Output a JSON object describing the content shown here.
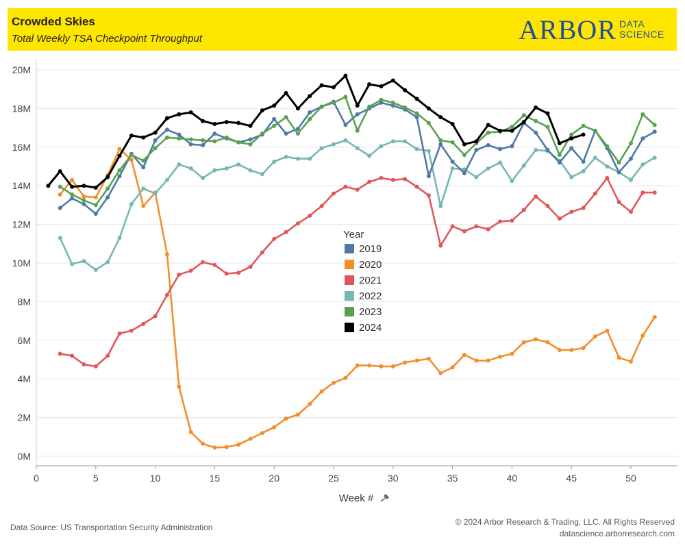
{
  "header": {
    "title": "Crowded Skies",
    "subtitle": "Total Weekly TSA Checkpoint Throughput",
    "logo_word": "ARBOR",
    "logo_line1": "DATA",
    "logo_line2": "SCIENCE"
  },
  "footer": {
    "source": "Data Source: US Transportation Security Administration",
    "copyright": "© 2024 Arbor Research & Trading, LLC. All Rights Reserved",
    "website": "datascience.arborresearch.com"
  },
  "chart_data": {
    "type": "line",
    "title": "Crowded Skies",
    "subtitle": "Total Weekly TSA Checkpoint Throughput",
    "xlabel": "Week #",
    "ylabel": "",
    "xlim": [
      0,
      53
    ],
    "ylim": [
      0,
      20000000
    ],
    "xticks": [
      0,
      5,
      10,
      15,
      20,
      25,
      30,
      35,
      40,
      45,
      50
    ],
    "yticks": [
      0,
      2000000,
      4000000,
      6000000,
      8000000,
      10000000,
      12000000,
      14000000,
      16000000,
      18000000,
      20000000
    ],
    "ytick_labels": [
      "0M",
      "2M",
      "4M",
      "6M",
      "8M",
      "10M",
      "12M",
      "14M",
      "16M",
      "18M",
      "20M"
    ],
    "grid": "horizontal",
    "legend_title": "Year",
    "legend_position": "center",
    "series": [
      {
        "name": "2019",
        "color": "#4e79a7",
        "x": [
          2,
          3,
          4,
          5,
          6,
          7,
          8,
          9,
          10,
          11,
          12,
          13,
          14,
          15,
          16,
          17,
          18,
          19,
          20,
          21,
          22,
          23,
          24,
          25,
          26,
          27,
          28,
          29,
          30,
          31,
          32,
          33,
          34,
          35,
          36,
          37,
          38,
          39,
          40,
          41,
          42,
          43,
          44,
          45,
          46,
          47,
          48,
          49,
          50,
          51,
          52
        ],
        "y": [
          12850000,
          13350000,
          13050000,
          12550000,
          13400000,
          14500000,
          15650000,
          14950000,
          16350000,
          16900000,
          16650000,
          16150000,
          16100000,
          16700000,
          16450000,
          16250000,
          16400000,
          16650000,
          17450000,
          16700000,
          16950000,
          17800000,
          18100000,
          18350000,
          17150000,
          17700000,
          18000000,
          18300000,
          18150000,
          17950000,
          17550000,
          14500000,
          16150000,
          15250000,
          14650000,
          15850000,
          16100000,
          15900000,
          16050000,
          17250000,
          16750000,
          15850000,
          15200000,
          15950000,
          15250000,
          16850000,
          15950000,
          14700000,
          15400000,
          16450000,
          16800000
        ]
      },
      {
        "name": "2020",
        "color": "#f28e2b",
        "x": [
          2,
          3,
          4,
          5,
          6,
          7,
          8,
          9,
          10,
          11,
          12,
          13,
          14,
          15,
          16,
          17,
          18,
          19,
          20,
          21,
          22,
          23,
          24,
          25,
          26,
          27,
          28,
          29,
          30,
          31,
          32,
          33,
          34,
          35,
          36,
          37,
          38,
          39,
          40,
          41,
          42,
          43,
          44,
          45,
          46,
          47,
          48,
          49,
          50,
          51,
          52
        ],
        "y": [
          13550000,
          14300000,
          13450000,
          13400000,
          14550000,
          15900000,
          15350000,
          12950000,
          13650000,
          10450000,
          3600000,
          1250000,
          650000,
          450000,
          470000,
          600000,
          900000,
          1200000,
          1500000,
          1950000,
          2150000,
          2700000,
          3350000,
          3800000,
          4050000,
          4700000,
          4700000,
          4650000,
          4650000,
          4850000,
          4950000,
          5050000,
          4300000,
          4600000,
          5250000,
          4950000,
          4950000,
          5150000,
          5300000,
          5900000,
          6050000,
          5900000,
          5500000,
          5500000,
          5600000,
          6200000,
          6500000,
          5100000,
          4900000,
          6250000,
          7200000
        ]
      },
      {
        "name": "2021",
        "color": "#e15759",
        "x": [
          2,
          3,
          4,
          5,
          6,
          7,
          8,
          9,
          10,
          11,
          12,
          13,
          14,
          15,
          16,
          17,
          18,
          19,
          20,
          21,
          22,
          23,
          24,
          25,
          26,
          27,
          28,
          29,
          30,
          31,
          32,
          33,
          34,
          35,
          36,
          37,
          38,
          39,
          40,
          41,
          42,
          43,
          44,
          45,
          46,
          47,
          48,
          49,
          50,
          51,
          52
        ],
        "y": [
          5300000,
          5200000,
          4750000,
          4650000,
          5200000,
          6350000,
          6500000,
          6850000,
          7250000,
          8350000,
          9400000,
          9600000,
          10050000,
          9900000,
          9450000,
          9500000,
          9800000,
          10550000,
          11250000,
          11600000,
          12050000,
          12450000,
          12950000,
          13600000,
          13950000,
          13800000,
          14200000,
          14400000,
          14300000,
          14350000,
          13950000,
          13500000,
          10900000,
          11900000,
          11650000,
          11900000,
          11750000,
          12150000,
          12200000,
          12750000,
          13450000,
          12950000,
          12300000,
          12650000,
          12850000,
          13600000,
          14400000,
          13150000,
          12650000,
          13650000,
          13650000
        ]
      },
      {
        "name": "2022",
        "color": "#76b7b2",
        "x": [
          2,
          3,
          4,
          5,
          6,
          7,
          8,
          9,
          10,
          11,
          12,
          13,
          14,
          15,
          16,
          17,
          18,
          19,
          20,
          21,
          22,
          23,
          24,
          25,
          26,
          27,
          28,
          29,
          30,
          31,
          32,
          33,
          34,
          35,
          36,
          37,
          38,
          39,
          40,
          41,
          42,
          43,
          44,
          45,
          46,
          47,
          48,
          49,
          50,
          51,
          52
        ],
        "y": [
          11300000,
          9950000,
          10100000,
          9650000,
          10050000,
          11300000,
          13050000,
          13850000,
          13600000,
          14300000,
          15100000,
          14900000,
          14400000,
          14800000,
          14900000,
          15100000,
          14800000,
          14600000,
          15250000,
          15500000,
          15400000,
          15400000,
          15950000,
          16150000,
          16350000,
          15950000,
          15550000,
          16050000,
          16300000,
          16300000,
          15900000,
          15800000,
          12950000,
          14900000,
          14850000,
          14450000,
          14900000,
          15200000,
          14250000,
          15050000,
          15850000,
          15800000,
          15300000,
          14450000,
          14750000,
          15450000,
          15000000,
          14700000,
          14300000,
          15100000,
          15450000
        ]
      },
      {
        "name": "2023",
        "color": "#59a14f",
        "x": [
          2,
          3,
          4,
          5,
          6,
          7,
          8,
          9,
          10,
          11,
          12,
          13,
          14,
          15,
          16,
          17,
          18,
          19,
          20,
          21,
          22,
          23,
          24,
          25,
          26,
          27,
          28,
          29,
          30,
          31,
          32,
          33,
          34,
          35,
          36,
          37,
          38,
          39,
          40,
          41,
          42,
          43,
          44,
          45,
          46,
          47,
          48,
          49,
          50,
          51,
          52
        ],
        "y": [
          13950000,
          13550000,
          13250000,
          13000000,
          13850000,
          14800000,
          15600000,
          15300000,
          15950000,
          16500000,
          16450000,
          16400000,
          16350000,
          16300000,
          16500000,
          16250000,
          16150000,
          16700000,
          17100000,
          17550000,
          16700000,
          17450000,
          18100000,
          18300000,
          18600000,
          16850000,
          18100000,
          18450000,
          18300000,
          18050000,
          17750000,
          17250000,
          16350000,
          16250000,
          15600000,
          16200000,
          16750000,
          16800000,
          17050000,
          17650000,
          17350000,
          17050000,
          15600000,
          16650000,
          17100000,
          16850000,
          16050000,
          15200000,
          16200000,
          17700000,
          17150000
        ]
      },
      {
        "name": "2024",
        "color": "#000000",
        "x": [
          1,
          2,
          3,
          4,
          5,
          6,
          7,
          8,
          9,
          10,
          11,
          12,
          13,
          14,
          15,
          16,
          17,
          18,
          19,
          20,
          21,
          22,
          23,
          24,
          25,
          26,
          27,
          28,
          29,
          30,
          31,
          32,
          33,
          34,
          35,
          36,
          37,
          38,
          39,
          40,
          41,
          42,
          43,
          44,
          45,
          46
        ],
        "y": [
          14000000,
          14750000,
          13950000,
          14000000,
          13900000,
          14450000,
          15550000,
          16600000,
          16500000,
          16750000,
          17500000,
          17700000,
          17800000,
          17350000,
          17200000,
          17300000,
          17250000,
          17100000,
          17900000,
          18150000,
          18800000,
          18000000,
          18650000,
          19200000,
          19100000,
          19700000,
          18150000,
          19250000,
          19150000,
          19450000,
          18950000,
          18500000,
          18000000,
          17550000,
          17200000,
          16150000,
          16300000,
          17150000,
          16850000,
          16850000,
          17300000,
          18050000,
          17750000,
          16200000,
          16450000,
          16650000
        ]
      }
    ]
  }
}
